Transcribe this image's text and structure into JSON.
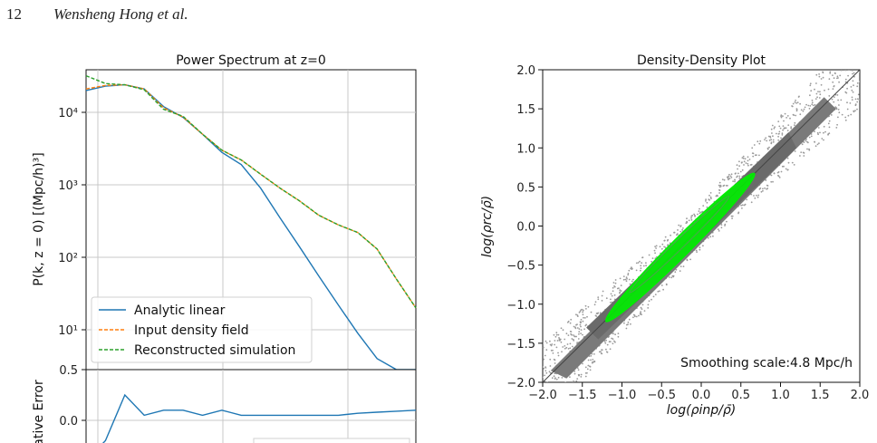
{
  "header": {
    "page_number": "12",
    "authors": "Wensheng Hong et al."
  },
  "chart_data": [
    {
      "type": "line",
      "title": "Power Spectrum at z=0",
      "ylabel": "P(k, z = 0) [(Mpc/h)³]",
      "xlabel": "",
      "yscale": "log",
      "ylim": [
        0.5,
        40000
      ],
      "yticks": [
        {
          "label": "10⁴",
          "value": 10000
        },
        {
          "label": "10³",
          "value": 1000
        },
        {
          "label": "10²",
          "value": 100
        },
        {
          "label": "10¹",
          "value": 10
        }
      ],
      "grid": true,
      "legend_position": "lower-left",
      "series": [
        {
          "name": "Analytic linear",
          "color": "#1f77b4",
          "style": "solid",
          "values": [
            20000,
            23000,
            24000,
            21000,
            12000,
            8500,
            5000,
            2800,
            1900,
            900,
            350,
            140,
            55,
            22,
            9,
            4,
            1.6,
            0.6
          ]
        },
        {
          "name": "Input density field",
          "color": "#ff7f0e",
          "style": "dashed",
          "values": [
            21000,
            23500,
            24000,
            21000,
            11500,
            8600,
            5000,
            3000,
            2200,
            1400,
            900,
            600,
            380,
            280,
            220,
            130,
            50,
            20
          ]
        },
        {
          "name": "Reconstructed simulation",
          "color": "#2ca02c",
          "style": "dashed",
          "values": [
            32000,
            25000,
            24000,
            20500,
            11000,
            8800,
            5000,
            3000,
            2200,
            1400,
            900,
            600,
            380,
            280,
            220,
            130,
            50,
            20
          ]
        }
      ]
    },
    {
      "type": "line",
      "title": "",
      "ylabel": "ative Error",
      "yticks": [
        {
          "label": "0.5",
          "value": 0.5
        },
        {
          "label": "0.0",
          "value": 0.0
        }
      ],
      "grid": true,
      "series": [
        {
          "name": "",
          "color": "#1f77b4",
          "values": [
            -0.4,
            -0.2,
            0.25,
            0.05,
            0.1,
            0.1,
            0.05,
            0.1,
            0.05,
            0.05,
            0.05,
            0.05,
            0.05,
            0.05,
            0.07,
            0.08,
            0.09,
            0.1
          ]
        }
      ]
    },
    {
      "type": "scatter",
      "title": "Density-Density Plot",
      "xlabel": "log(ρinp/ρ̄)",
      "ylabel": "log(ρrc/ρ̄)",
      "xlim": [
        -2.0,
        2.0
      ],
      "ylim": [
        -2.0,
        2.0
      ],
      "xticks": [
        "−2.0",
        "−1.5",
        "−1.0",
        "−0.5",
        "0.0",
        "0.5",
        "1.0",
        "1.5",
        "2.0"
      ],
      "yticks": [
        "2.0",
        "1.5",
        "1.0",
        "0.5",
        "0.0",
        "−0.5",
        "−1.0",
        "−1.5",
        "−2.0"
      ],
      "annotation": "Smoothing scale:4.8 Mpc/h",
      "point_color": "#808080",
      "contour_color": "#00ee00",
      "contours": [
        {
          "points": [
            [
              -1.2,
              -1.22
            ],
            [
              0.67,
              0.67
            ]
          ]
        },
        {
          "points": [
            [
              -0.9,
              -0.85
            ],
            [
              0.35,
              0.38
            ]
          ]
        }
      ]
    }
  ]
}
